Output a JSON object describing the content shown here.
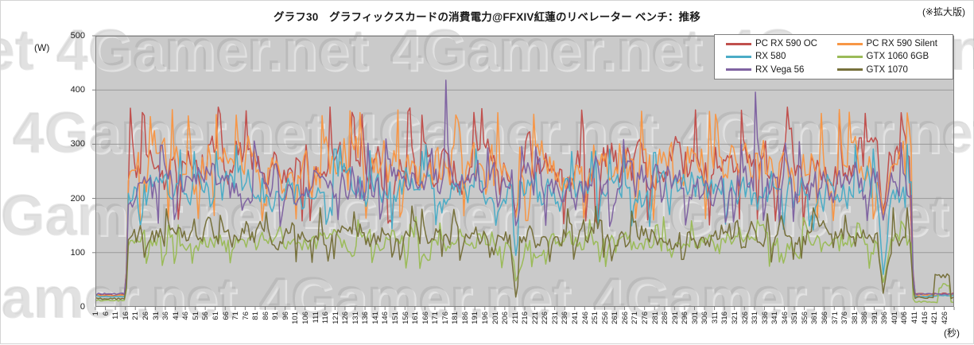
{
  "page": {
    "note": "(※拡大版)",
    "watermark_text": "4Gamer.net"
  },
  "chart_data": {
    "type": "line",
    "title": "グラフ30　グラフィックスカードの消費電力@FFXIV紅蓮のリベレーター ベンチ：推移",
    "xlabel": "(秒)",
    "ylabel": "(W)",
    "ylim": [
      0,
      500
    ],
    "y_ticks": [
      0,
      100,
      200,
      300,
      400,
      500
    ],
    "x_ticks": {
      "start": 1,
      "step": 5,
      "end": 426
    },
    "x_total_seconds": 430,
    "grid": true,
    "legend_position": "top-right",
    "timing": {
      "idle_until": 15,
      "ramp_start": 16,
      "active_from": 18,
      "active_until": 409,
      "drop_at": 410,
      "idle_from": 411,
      "load_dip_centers": [
        211,
        395
      ]
    },
    "series": [
      {
        "name": "PC RX 590 OC",
        "color": "#C0504D",
        "seed": 101,
        "idle_start": 22,
        "idle_end": 24,
        "active_base": 262,
        "active_amp": 62,
        "active_min": 150,
        "active_max": 370,
        "dip_min": [
          170,
          178
        ],
        "spikes": [],
        "end_bump": null
      },
      {
        "name": "PC RX 590 Silent",
        "color": "#F79646",
        "seed": 202,
        "idle_start": 21,
        "idle_end": 22,
        "active_base": 258,
        "active_amp": 66,
        "active_min": 155,
        "active_max": 368,
        "dip_min": [
          165,
          170
        ],
        "spikes": [],
        "end_bump": null
      },
      {
        "name": "RX 580",
        "color": "#4BACC6",
        "seed": 303,
        "idle_start": 19,
        "idle_end": 20,
        "active_base": 212,
        "active_amp": 48,
        "active_min": 140,
        "active_max": 302,
        "dip_min": [
          95,
          60
        ],
        "spikes": [
          {
            "t": 407,
            "value": 300
          }
        ],
        "end_bump": null
      },
      {
        "name": "GTX 1060 6GB",
        "color": "#9BBB59",
        "seed": 404,
        "idle_start": 12,
        "idle_end": 9,
        "active_base": 118,
        "active_amp": 30,
        "active_min": 70,
        "active_max": 168,
        "dip_min": [
          48,
          45
        ],
        "spikes": [],
        "end_bump": {
          "from": 423,
          "to": 428,
          "value": 38
        }
      },
      {
        "name": "RX Vega 56",
        "color": "#8064A2",
        "seed": 505,
        "idle_start": 24,
        "idle_end": 23,
        "active_base": 225,
        "active_amp": 52,
        "active_min": 148,
        "active_max": 310,
        "dip_min": [
          150,
          160
        ],
        "spikes": [
          {
            "t": 176,
            "value": 418
          },
          {
            "t": 331,
            "value": 396
          }
        ],
        "end_bump": null
      },
      {
        "name": "GTX 1070",
        "color": "#77713C",
        "seed": 606,
        "idle_start": 15,
        "idle_end": 17,
        "active_base": 132,
        "active_amp": 33,
        "active_min": 82,
        "active_max": 186,
        "dip_min": [
          18,
          25
        ],
        "spikes": [],
        "end_bump": {
          "from": 421,
          "to": 428,
          "value": 58
        }
      }
    ]
  },
  "colors": {
    "plot_bg": "#cacaca",
    "gridline": "#999999",
    "plot_border": "#7f7f7f",
    "tick": "#7f7f7f",
    "axis_text": "#1a1a1a"
  }
}
